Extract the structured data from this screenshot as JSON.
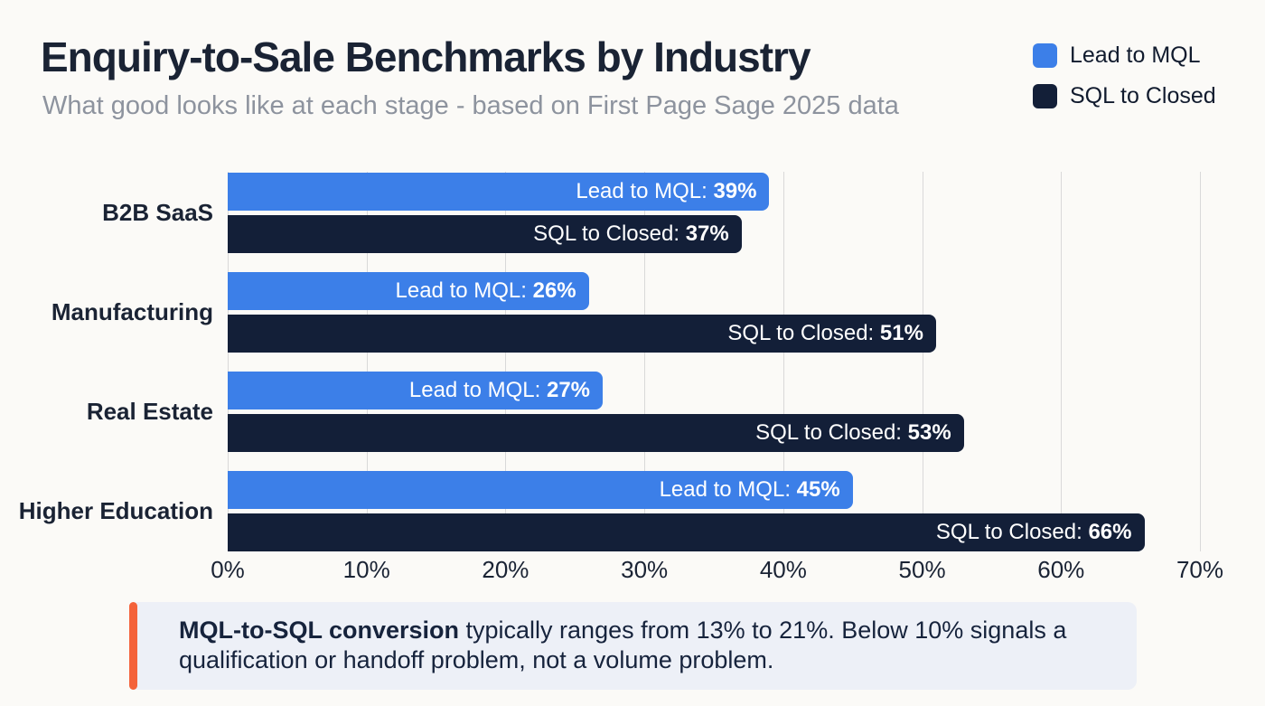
{
  "page": {
    "background": "#fbfaf7"
  },
  "header": {
    "title": "Enquiry-to-Sale Benchmarks by Industry",
    "subtitle": "What good looks like at each stage - based on First Page Sage 2025 data"
  },
  "legend": {
    "position": "top-right",
    "items": [
      {
        "label": "Lead to MQL",
        "color": "#3c7fe8"
      },
      {
        "label": "SQL to Closed",
        "color": "#131f38"
      }
    ]
  },
  "chart_data": {
    "type": "bar",
    "orientation": "horizontal",
    "title": "Enquiry-to-Sale Benchmarks by Industry",
    "subtitle": "What good looks like at each stage - based on First Page Sage 2025 data",
    "categories": [
      "B2B SaaS",
      "Manufacturing",
      "Real Estate",
      "Higher Education"
    ],
    "series": [
      {
        "name": "Lead to MQL",
        "color": "#3c7fe8",
        "values": [
          39,
          26,
          27,
          45
        ]
      },
      {
        "name": "SQL to Closed",
        "color": "#131f38",
        "values": [
          37,
          51,
          53,
          66
        ]
      }
    ],
    "bar_label_format": "{series}: {value}%",
    "xlim": [
      0,
      70
    ],
    "x_ticks": [
      {
        "value": 0,
        "label": "0%"
      },
      {
        "value": 10,
        "label": "10%"
      },
      {
        "value": 20,
        "label": "20%"
      },
      {
        "value": 30,
        "label": "30%"
      },
      {
        "value": 40,
        "label": "40%"
      },
      {
        "value": 50,
        "label": "50%"
      },
      {
        "value": 60,
        "label": "60%"
      },
      {
        "value": 70,
        "label": "70%"
      }
    ],
    "grid": "vertical",
    "gridline_color": "#d9d9d9",
    "legend_position": "top-right"
  },
  "callout": {
    "bold_text": "MQL-to-SQL conversion",
    "text": " typically ranges from 13% to 21%. Below 10% signals a qualification or handoff problem, not a volume problem.",
    "accent_color": "#f4623a",
    "background": "#edf0f7"
  }
}
